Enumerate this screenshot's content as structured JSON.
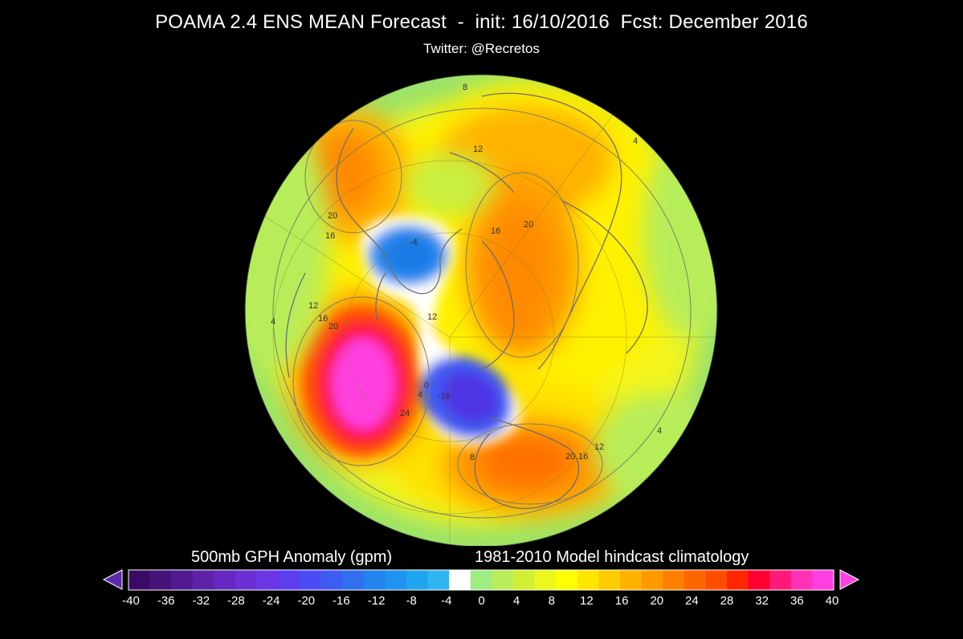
{
  "header": {
    "title": "POAMA 2.4 ENS MEAN Forecast  -  init: 16/10/2016  Fcst: December 2016",
    "subtitle": "Twitter: @Recretos"
  },
  "map": {
    "contour_labels": [
      "8",
      "12",
      "20",
      "16",
      "-4",
      "20",
      "16",
      "12",
      "4",
      "20",
      "16",
      "12",
      "4",
      "4",
      "8",
      "0",
      "-16",
      "20",
      "16",
      "12",
      "24",
      "4"
    ]
  },
  "legend": {
    "left_title": "500mb GPH Anomaly (gpm)",
    "right_title": "1981-2010 Model hindcast climatology",
    "ticks": [
      "-40",
      "-36",
      "-32",
      "-28",
      "-24",
      "-20",
      "-16",
      "-12",
      "-8",
      "-4",
      "0",
      "4",
      "8",
      "12",
      "16",
      "20",
      "24",
      "28",
      "32",
      "36",
      "40"
    ],
    "colors": [
      "#3b0a63",
      "#45137a",
      "#521a91",
      "#5d22a8",
      "#6628c0",
      "#6b2fd6",
      "#6a36e6",
      "#5b3fef",
      "#4d4bf3",
      "#3f5cf2",
      "#2f6ff0",
      "#2383ee",
      "#1f93ee",
      "#1fa5ef",
      "#2fb5f0",
      "#ffffff",
      "#9fec82",
      "#b9ed5a",
      "#d3ef34",
      "#ecf71d",
      "#ffff00",
      "#ffe600",
      "#ffcc00",
      "#ffb300",
      "#ff9900",
      "#ff8000",
      "#ff6600",
      "#ff4d00",
      "#ff2600",
      "#ff0033",
      "#ff1a7a",
      "#ff33b8",
      "#ff3fdf"
    ],
    "under_color": "#5a2aa8",
    "over_color": "#ff3fdf"
  }
}
